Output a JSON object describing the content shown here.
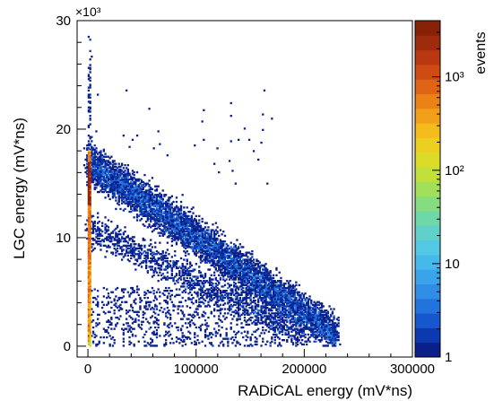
{
  "chart_data": {
    "type": "heatmap",
    "title": "",
    "xlabel": "RADiCAL energy  (mV*ns)",
    "ylabel": "LGC energy (mV*ns)",
    "y_multiplier": "×10³",
    "xlim": [
      -10000,
      300000
    ],
    "ylim": [
      -1000,
      30000
    ],
    "x_ticks": [
      0,
      100000,
      200000,
      300000
    ],
    "x_tick_labels": [
      "0",
      "100000",
      "200000",
      "300000"
    ],
    "y_ticks": [
      0,
      10000,
      20000,
      30000
    ],
    "y_tick_labels": [
      "0",
      "10",
      "20",
      "30"
    ],
    "colorbar": {
      "label": "events",
      "scale": "log",
      "range": [
        1,
        4000
      ],
      "tick_values": [
        1,
        10,
        100,
        1000
      ],
      "tick_labels": [
        "1",
        "10",
        "10²",
        "10³"
      ],
      "palette": [
        "#0b1f8a",
        "#0d39b0",
        "#1657cf",
        "#2373dd",
        "#2f8de6",
        "#3aa3ea",
        "#45b8ec",
        "#52c8e4",
        "#5fd1c9",
        "#6ed8a8",
        "#86dd7f",
        "#a3e05a",
        "#c2e03c",
        "#dbdc2a",
        "#ecd021",
        "#f4bb1c",
        "#f2a01a",
        "#eb8217",
        "#e06415",
        "#d04a13",
        "#b93811",
        "#9f2b0f",
        "#862208"
      ]
    },
    "regions": [
      {
        "name": "vertical band at RADiCAL≈0",
        "x_range": [
          0,
          2000
        ],
        "y_range": [
          0,
          18000
        ],
        "counts": "up to ~10³"
      },
      {
        "name": "upper diagonal band",
        "from": [
          0,
          17000
        ],
        "to": [
          230000,
          1000
        ],
        "counts": "1–30"
      },
      {
        "name": "lower diagonal band",
        "from": [
          0,
          11000
        ],
        "to": [
          200000,
          1000
        ],
        "counts": "1–10"
      }
    ],
    "grid": false,
    "legend": "none"
  }
}
